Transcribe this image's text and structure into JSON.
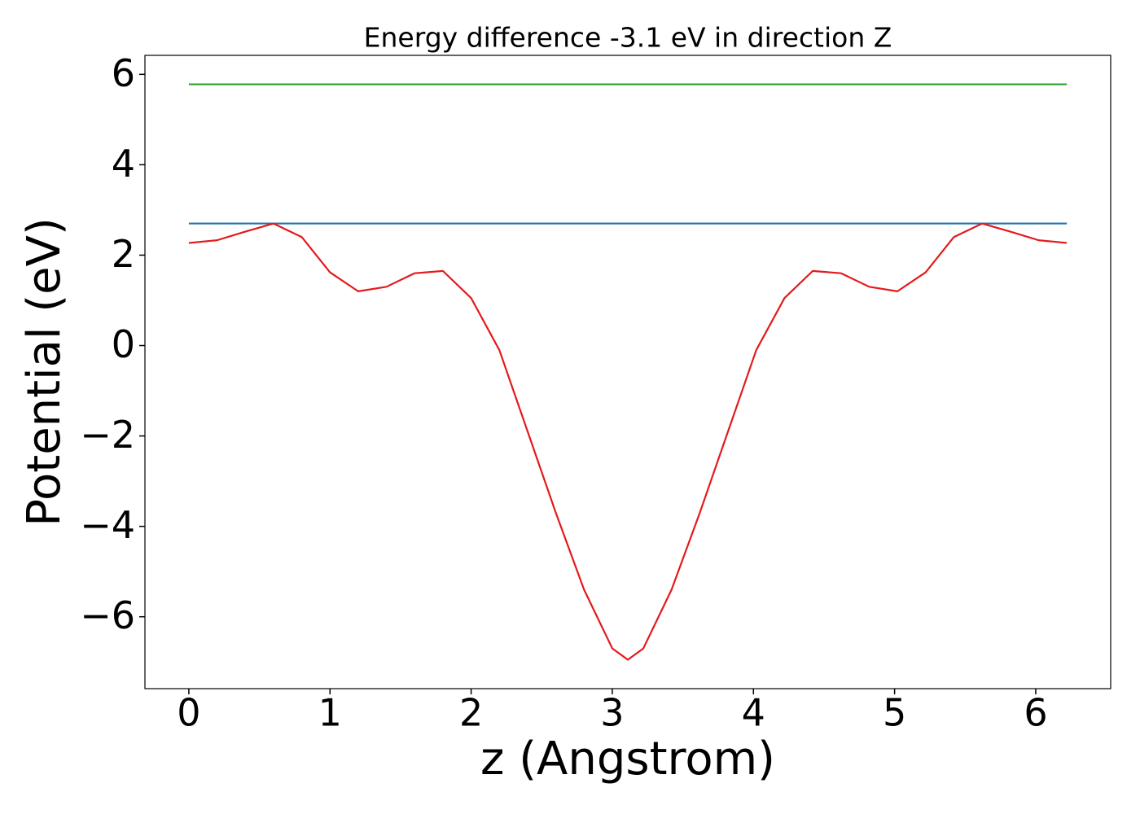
{
  "chart_data": {
    "type": "line",
    "title": "Energy difference -3.1 eV in direction Z",
    "xlabel": "z (Angstrom)",
    "ylabel": "Potential (eV)",
    "xlim": [
      -0.311,
      6.531
    ],
    "ylim": [
      -7.59,
      6.42
    ],
    "xticks": [
      0,
      1,
      2,
      3,
      4,
      5,
      6
    ],
    "yticks": [
      {
        "value": -6,
        "label": "−6"
      },
      {
        "value": -4,
        "label": "−4"
      },
      {
        "value": -2,
        "label": "−2"
      },
      0,
      2,
      4,
      6
    ],
    "series": [
      {
        "color": "#2ca02c",
        "x": [
          0,
          6.22
        ],
        "values": [
          5.78,
          5.78
        ]
      },
      {
        "color": "#1f77b4",
        "x": [
          0,
          6.22
        ],
        "values": [
          2.7,
          2.7
        ]
      },
      {
        "color": "#e31a1c",
        "x": [
          0,
          0.2,
          0.4,
          0.6,
          0.8,
          1.0,
          1.2,
          1.4,
          1.6,
          1.8,
          2.0,
          2.2,
          2.4,
          2.6,
          2.8,
          3.0,
          3.11,
          3.22,
          3.42,
          3.62,
          3.82,
          4.02,
          4.22,
          4.42,
          4.62,
          4.82,
          5.02,
          5.22,
          5.42,
          5.62,
          5.82,
          6.02,
          6.22
        ],
        "values": [
          2.27,
          2.33,
          2.52,
          2.7,
          2.4,
          1.62,
          1.2,
          1.3,
          1.6,
          1.65,
          1.05,
          -0.1,
          -1.9,
          -3.7,
          -5.4,
          -6.7,
          -6.95,
          -6.7,
          -5.4,
          -3.7,
          -1.9,
          -0.1,
          1.05,
          1.65,
          1.6,
          1.3,
          1.2,
          1.62,
          2.4,
          2.7,
          2.52,
          2.33,
          2.27
        ]
      }
    ]
  }
}
